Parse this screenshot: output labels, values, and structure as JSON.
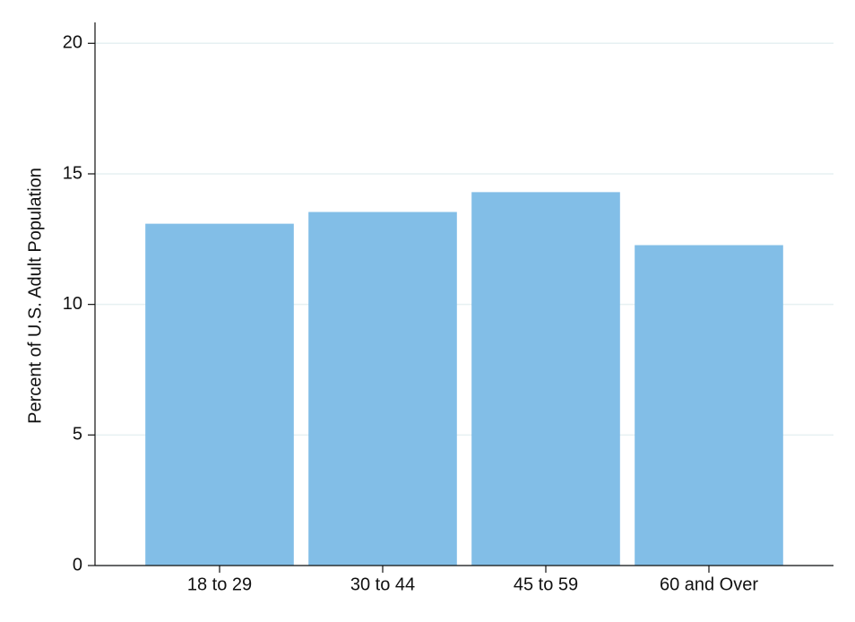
{
  "chart_data": {
    "type": "bar",
    "y_label": "Percent of U.S. Adult Population",
    "categories": [
      "18 to 29",
      "30 to 44",
      "45 to 59",
      "60 and Over"
    ],
    "values": [
      13.09,
      13.54,
      14.3,
      12.27
    ],
    "color": "#82bee7",
    "ylim": [
      0,
      20.8
    ],
    "yticks": [
      0,
      5,
      10,
      15,
      20
    ],
    "grid": true
  }
}
